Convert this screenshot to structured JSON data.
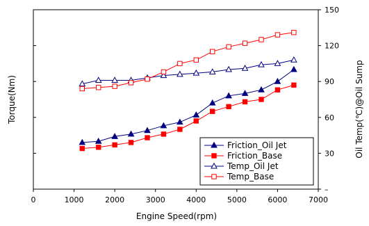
{
  "chart_data": {
    "type": "line",
    "xlabel": "Engine Speed(rpm)",
    "ylabel_left": "Torque(Nm)",
    "ylabel_right": "Oil Temp(℃)@Oil Sump",
    "xlim": [
      0,
      7000
    ],
    "x_ticks": [
      "0",
      "1000",
      "2000",
      "3000",
      "4000",
      "5000",
      "6000",
      "7000"
    ],
    "ylim_left": [
      0,
      150
    ],
    "ylim_right": [
      0,
      150
    ],
    "y_right_ticks": [
      "–",
      "30",
      "60",
      "90",
      "120",
      "150"
    ],
    "grid": false,
    "legend_position": "lower-right",
    "series": [
      {
        "name": "Friction_Oil Jet",
        "axis": "left",
        "color": "#000080",
        "marker": "filled-triangle",
        "x": [
          1200,
          1600,
          2000,
          2400,
          2800,
          3200,
          3600,
          4000,
          4400,
          4800,
          5200,
          5600,
          6000,
          6400
        ],
        "y": [
          39,
          40,
          44,
          46,
          49,
          53,
          56,
          62,
          72,
          78,
          80,
          83,
          90,
          100
        ]
      },
      {
        "name": "Friction_Base",
        "axis": "left",
        "color": "#ff0000",
        "marker": "filled-square",
        "x": [
          1200,
          1600,
          2000,
          2400,
          2800,
          3200,
          3600,
          4000,
          4400,
          4800,
          5200,
          5600,
          6000,
          6400
        ],
        "y": [
          34,
          35,
          37,
          39,
          43,
          46,
          50,
          57,
          65,
          69,
          73,
          75,
          83,
          87
        ]
      },
      {
        "name": "Temp_Oil Jet",
        "axis": "right",
        "color": "#000080",
        "marker": "open-triangle",
        "x": [
          1200,
          1600,
          2000,
          2400,
          2800,
          3200,
          3600,
          4000,
          4400,
          4800,
          5200,
          5600,
          6000,
          6400
        ],
        "y": [
          88,
          91,
          91,
          91,
          93,
          95,
          96,
          97,
          98,
          100,
          101,
          104,
          105,
          108
        ]
      },
      {
        "name": "Temp_Base",
        "axis": "right",
        "color": "#ff0000",
        "marker": "open-square",
        "x": [
          1200,
          1600,
          2000,
          2400,
          2800,
          3200,
          3600,
          4000,
          4400,
          4800,
          5200,
          5600,
          6000,
          6400
        ],
        "y": [
          84,
          85,
          86,
          89,
          92,
          98,
          105,
          108,
          115,
          119,
          122,
          125,
          129,
          131
        ]
      }
    ]
  }
}
